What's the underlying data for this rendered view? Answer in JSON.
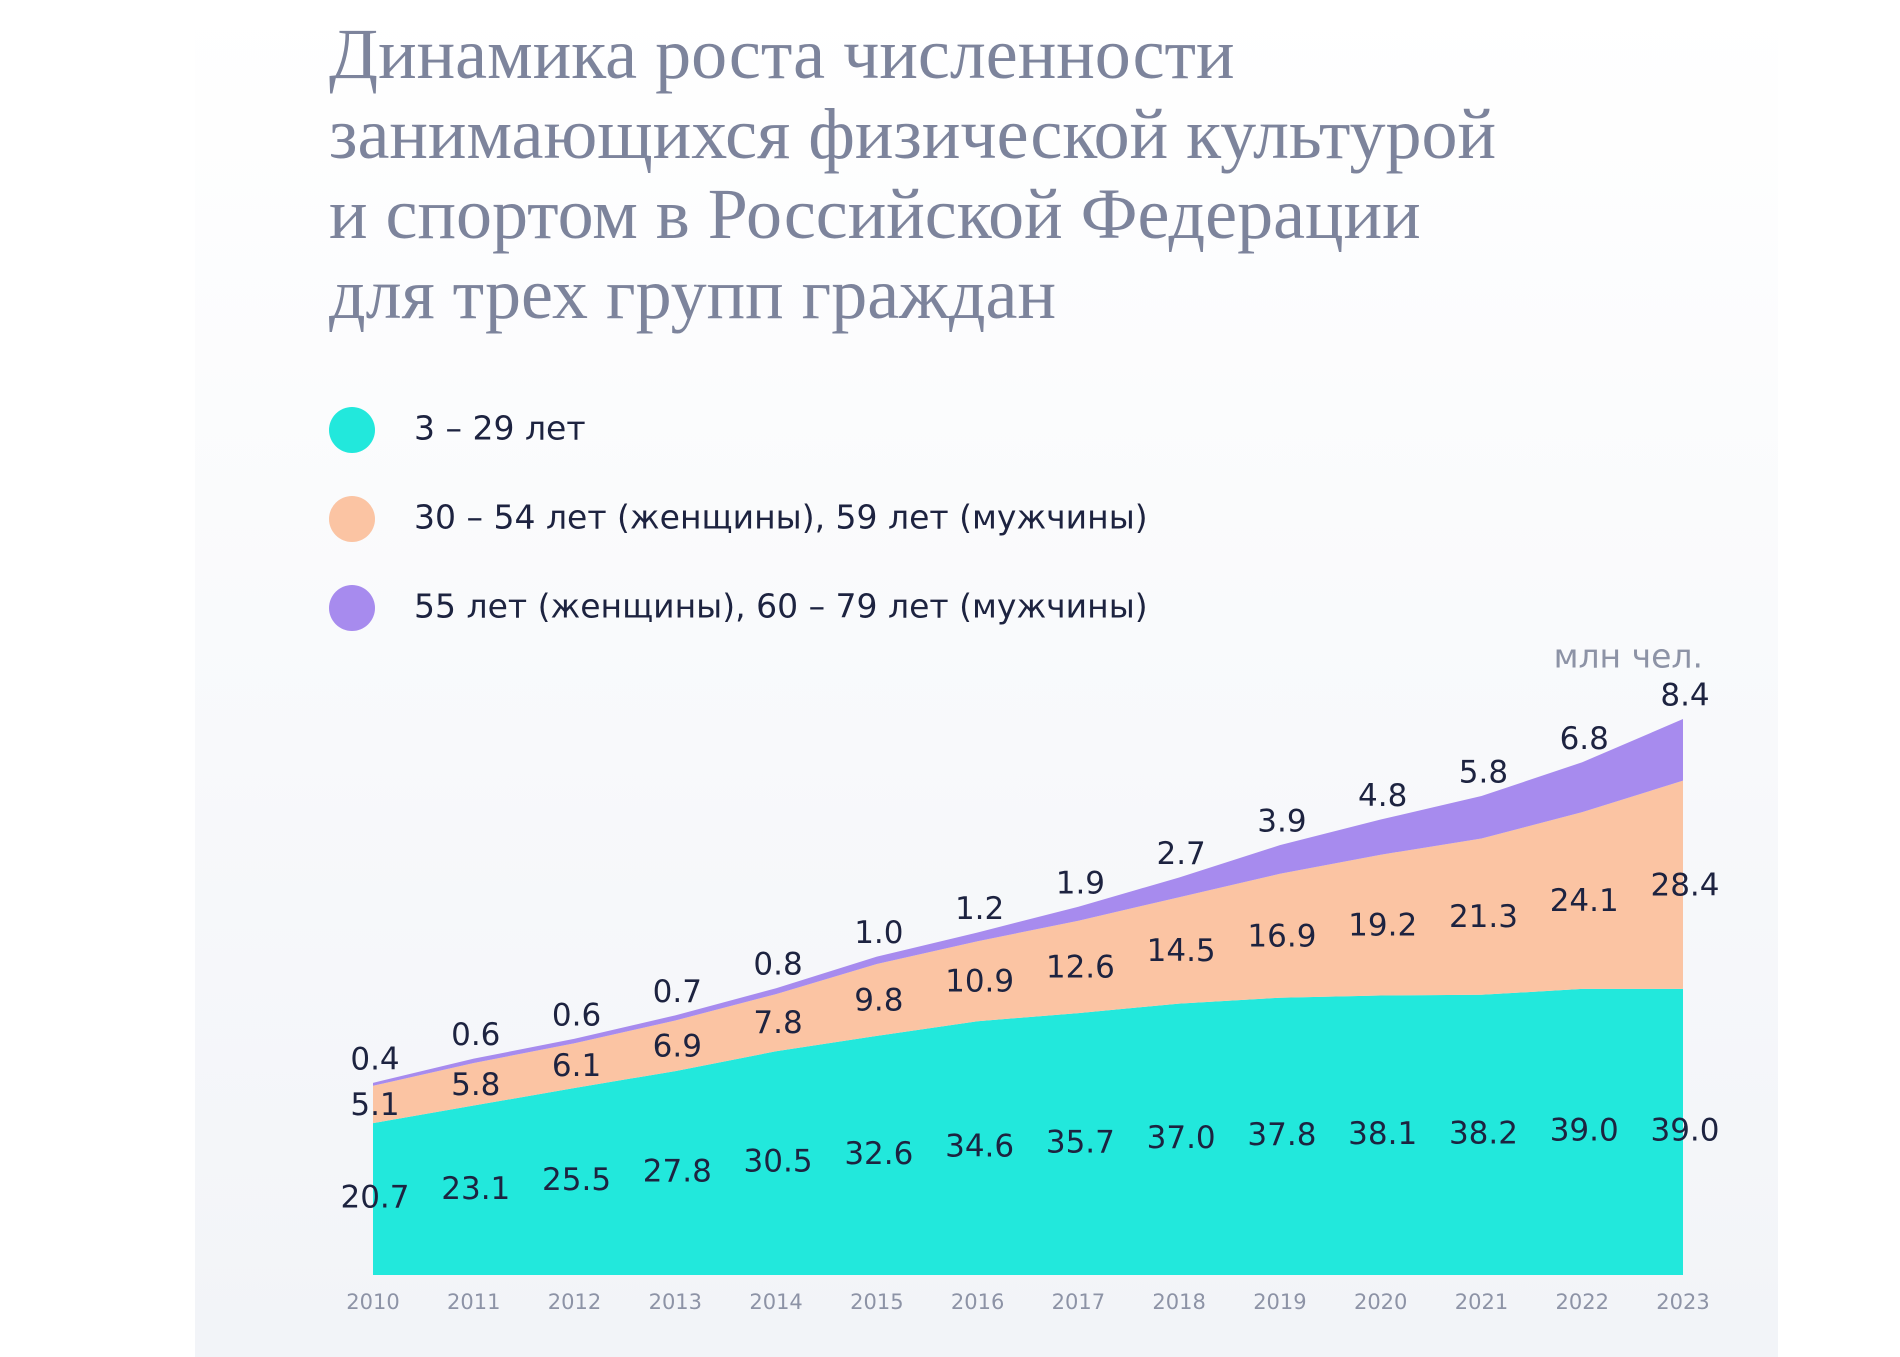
{
  "chart_data": {
    "type": "stacked-area",
    "title": "Динамика роста численности\nзанимающихся физической культурой\nи спортом в Российской Федерации\nдля трех групп граждан",
    "unit": "млн чел.",
    "categories": [
      "2010",
      "2011",
      "2012",
      "2013",
      "2014",
      "2015",
      "2016",
      "2017",
      "2018",
      "2019",
      "2020",
      "2021",
      "2022",
      "2023"
    ],
    "series": [
      {
        "name": "3 – 29 лет",
        "color": "#22e8dc",
        "values": [
          20.7,
          23.1,
          25.5,
          27.8,
          30.5,
          32.6,
          34.6,
          35.7,
          37.0,
          37.8,
          38.1,
          38.2,
          39.0,
          39.0
        ],
        "value_labels": [
          "20.7",
          "23.1",
          "25.5",
          "27.8",
          "30.5",
          "32.6",
          "34.6",
          "35.7",
          "37.0",
          "37.8",
          "38.1",
          "38.2",
          "39.0",
          "39.0"
        ]
      },
      {
        "name": "30 – 54 лет (женщины), 59 лет (мужчины)",
        "color": "#fbc4a3",
        "values": [
          5.1,
          5.8,
          6.1,
          6.9,
          7.8,
          9.8,
          10.9,
          12.6,
          14.5,
          16.9,
          19.2,
          21.3,
          24.1,
          28.4
        ],
        "value_labels": [
          "5.1",
          "5.8",
          "6.1",
          "6.9",
          "7.8",
          "9.8",
          "10.9",
          "12.6",
          "14.5",
          "16.9",
          "19.2",
          "21.3",
          "24.1",
          "28.4"
        ]
      },
      {
        "name": "55 лет (женщины), 60 – 79 лет (мужчины)",
        "color": "#a78bee",
        "values": [
          0.4,
          0.6,
          0.6,
          0.7,
          0.8,
          1.0,
          1.2,
          1.9,
          2.7,
          3.9,
          4.8,
          5.8,
          6.8,
          8.4
        ],
        "value_labels": [
          "0.4",
          "0.6",
          "0.6",
          "0.7",
          "0.8",
          "1.0",
          "1.2",
          "1.9",
          "2.7",
          "3.9",
          "4.8",
          "5.8",
          "6.8",
          "8.4"
        ]
      }
    ]
  }
}
